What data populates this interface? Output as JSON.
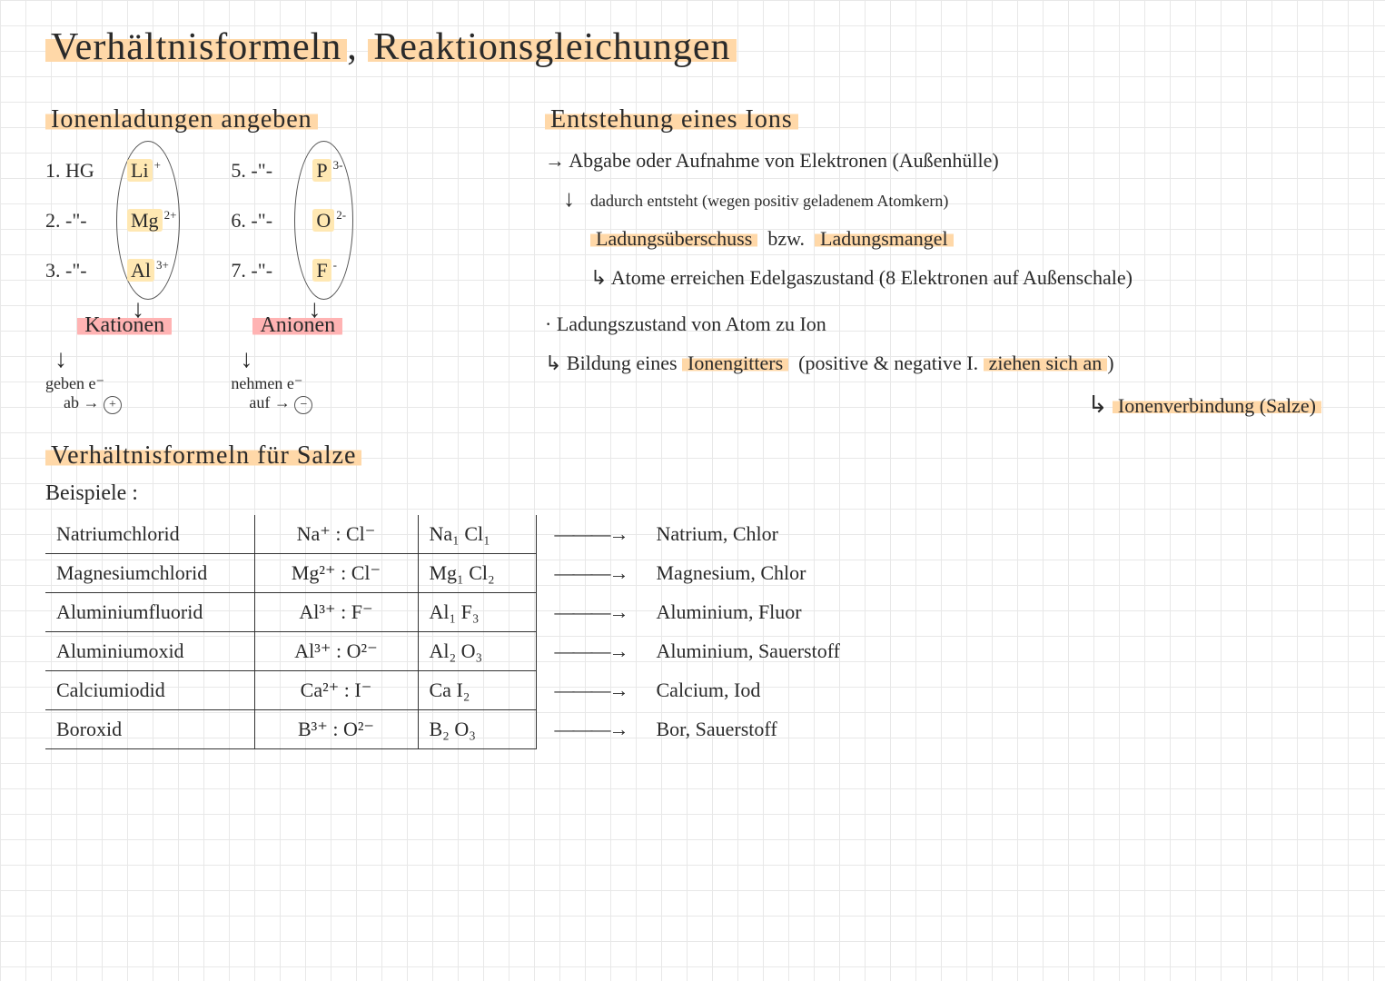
{
  "title_a": "Verhältnisformeln",
  "title_sep": ", ",
  "title_b": "Reaktionsgleichungen",
  "sec_ionen": "Ionenladungen angeben",
  "sec_entsteh": "Entstehung eines Ions",
  "sec_salze": "Verhältnisformeln für Salze",
  "beispiele": "Beispiele :",
  "kationen": "Kationen",
  "anionen": "Anionen",
  "geben": "geben e⁻",
  "ab": "ab",
  "nehmen": "nehmen e⁻",
  "auf": "auf",
  "kat": {
    "rows": [
      {
        "n": "1. HG",
        "sym": "Li",
        "sup": "+"
      },
      {
        "n": "2. -\"-",
        "sym": "Mg",
        "sup": "2+"
      },
      {
        "n": "3. -\"-",
        "sym": "Al",
        "sup": "3+"
      }
    ]
  },
  "an": {
    "rows": [
      {
        "n": "5. -\"-",
        "sym": "P",
        "sup": "3-"
      },
      {
        "n": "6. -\"-",
        "sym": "O",
        "sup": "2-"
      },
      {
        "n": "7. -\"-",
        "sym": "F",
        "sup": "-"
      }
    ]
  },
  "r1": "→ Abgabe oder Aufnahme von Elektronen (Außenhülle)",
  "r2": "dadurch entsteht (wegen positiv geladenem Atomkern)",
  "r3a": "Ladungsüberschuss",
  "r3b": "bzw.",
  "r3c": "Ladungsmangel",
  "r4": "↳ Atome erreichen Edelgaszustand (8 Elektronen auf Außenschale)",
  "r5": "· Ladungszustand von Atom zu Ion",
  "r6a": "↳ Bildung eines",
  "r6b": "Ionengitters",
  "r6c": "(positive & negative I.",
  "r6d": "ziehen sich an",
  "r6e": ")",
  "r7a": "↳",
  "r7b": "Ionenverbindung (Salze)",
  "table": [
    {
      "name": "Natriumchlorid",
      "ions": "Na⁺ : Cl⁻",
      "formula": "Na₁ Cl₁",
      "elem": "Natrium, Chlor"
    },
    {
      "name": "Magnesiumchlorid",
      "ions": "Mg²⁺ : Cl⁻",
      "formula": "Mg₁ Cl₂",
      "elem": "Magnesium, Chlor"
    },
    {
      "name": "Aluminiumfluorid",
      "ions": "Al³⁺ : F⁻",
      "formula": "Al₁ F₃",
      "elem": "Aluminium, Fluor"
    },
    {
      "name": "Aluminiumoxid",
      "ions": "Al³⁺ : O²⁻",
      "formula": "Al₂ O₃",
      "elem": "Aluminium, Sauerstoff"
    },
    {
      "name": "Calciumiodid",
      "ions": "Ca²⁺ : I⁻",
      "formula": "Ca I₂",
      "elem": "Calcium, Iod"
    },
    {
      "name": "Boroxid",
      "ions": "B³⁺ : O²⁻",
      "formula": "B₂ O₃",
      "elem": "Bor, Sauerstoff"
    }
  ],
  "arrow": "———→",
  "colors": {
    "orange": "#ffd8a8",
    "red": "#ffb3b3",
    "yellow": "#ffe8b3",
    "grid": "#e8e8e8",
    "ink": "#2a2a2a"
  }
}
